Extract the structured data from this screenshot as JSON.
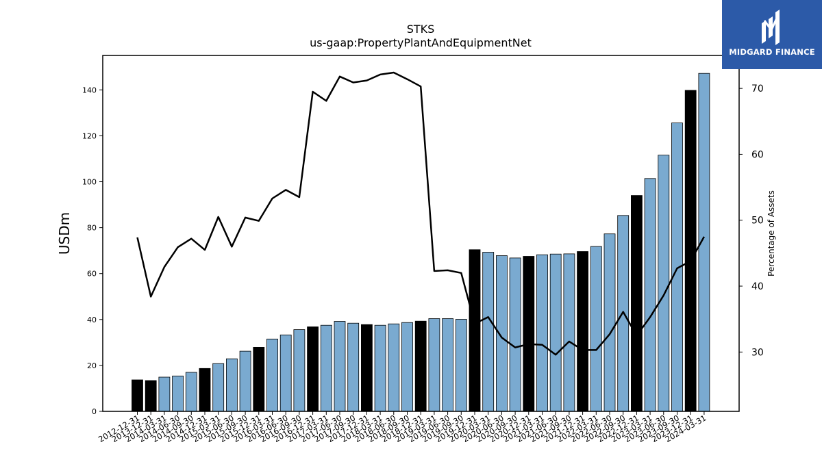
{
  "chart_data": {
    "type": "bar",
    "title": "STKS",
    "subtitle": "us-gaap:PropertyPlantAndEquipmentNet",
    "ylabel": "USDm",
    "y2label": "Percentage of Assets",
    "ylim": [
      0,
      155
    ],
    "y2lim": [
      21,
      75
    ],
    "yticks": [
      0,
      20,
      40,
      60,
      80,
      100,
      120,
      140
    ],
    "y2ticks": [
      30,
      40,
      50,
      60,
      70
    ],
    "grid": false,
    "categories": [
      "2012-12-31",
      "2013-12-31",
      "2014-03-31",
      "2014-06-30",
      "2014-09-30",
      "2014-12-31",
      "2015-03-31",
      "2015-06-30",
      "2015-09-30",
      "2015-12-31",
      "2016-03-31",
      "2016-06-30",
      "2016-09-30",
      "2016-12-31",
      "2017-03-31",
      "2017-06-30",
      "2017-09-30",
      "2017-12-31",
      "2018-03-31",
      "2018-06-30",
      "2018-09-30",
      "2018-12-31",
      "2019-03-31",
      "2019-06-30",
      "2019-09-30",
      "2019-12-31",
      "2020-03-31",
      "2020-06-30",
      "2020-09-30",
      "2020-12-31",
      "2021-03-31",
      "2021-06-30",
      "2021-09-30",
      "2021-12-31",
      "2022-03-31",
      "2022-06-30",
      "2022-09-30",
      "2022-12-31",
      "2023-03-31",
      "2023-06-30",
      "2023-09-30",
      "2023-12-31",
      "2024-03-31"
    ],
    "series": [
      {
        "values": [
          13.7,
          13.4,
          14.9,
          15.4,
          17.0,
          18.7,
          20.8,
          22.9,
          26.2,
          27.9,
          31.5,
          33.3,
          35.6,
          36.8,
          37.5,
          39.2,
          38.4,
          37.8,
          37.5,
          38.1,
          38.7,
          39.3,
          40.4,
          40.4,
          40.1,
          70.4,
          69.3,
          67.8,
          66.8,
          67.5,
          68.2,
          68.5,
          68.6,
          69.6,
          71.8,
          77.3,
          85.3,
          94.0,
          101.4,
          111.6,
          125.6,
          139.8,
          147.2
        ],
        "highlight": [
          true,
          true,
          false,
          false,
          false,
          true,
          false,
          false,
          false,
          true,
          false,
          false,
          false,
          true,
          false,
          false,
          false,
          true,
          false,
          false,
          false,
          true,
          false,
          false,
          false,
          true,
          false,
          false,
          false,
          true,
          false,
          false,
          false,
          true,
          false,
          false,
          false,
          true,
          false,
          false,
          false,
          true,
          false
        ],
        "colors": {
          "bar": "#7aaad0",
          "highlight": "#000000"
        }
      },
      {
        "type": "line",
        "axis": "right",
        "color": "#000000",
        "values": [
          47.4,
          38.4,
          42.9,
          45.9,
          47.2,
          45.5,
          50.5,
          46.0,
          50.4,
          49.9,
          53.3,
          54.6,
          53.5,
          69.5,
          68.1,
          71.8,
          70.9,
          71.2,
          72.1,
          72.4,
          71.4,
          70.3,
          42.3,
          42.4,
          42.0,
          34.3,
          35.3,
          32.2,
          30.7,
          31.2,
          31.1,
          29.6,
          31.6,
          30.3,
          30.3,
          32.7,
          36.1,
          32.5,
          35.3,
          38.6,
          42.7,
          43.8,
          47.5
        ]
      }
    ]
  },
  "logo": {
    "text": "MIDGARD FINANCE",
    "background": "#2c5aa8"
  }
}
